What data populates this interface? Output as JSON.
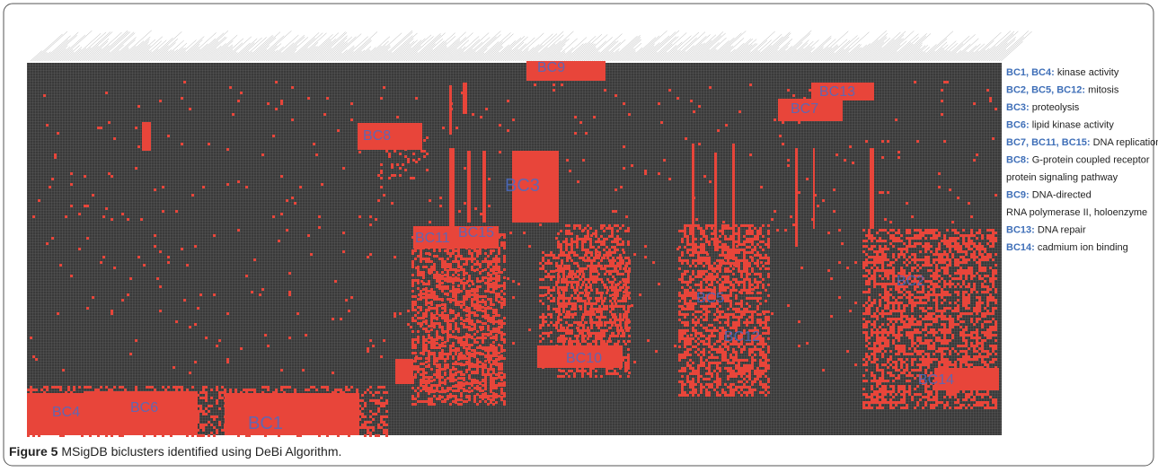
{
  "figure": {
    "bicluster_labels": [
      "BC9",
      "BC13",
      "BC7",
      "BC8",
      "BC3",
      "BC11",
      "BC15",
      "BC5",
      "BC2",
      "BC12",
      "BC10",
      "BC14",
      "BC4",
      "BC6",
      "BC1"
    ],
    "legend": [
      {
        "key": "BC1, BC4:",
        "text": "kinase activity"
      },
      {
        "key": "BC2, BC5, BC12:",
        "text": "mitosis"
      },
      {
        "key": "BC3:",
        "text": "proteolysis"
      },
      {
        "key": "BC6:",
        "text": "lipid kinase activity"
      },
      {
        "key": "BC7, BC11, BC15:",
        "text": "DNA replication"
      },
      {
        "key": "BC8:",
        "text": "G-protein coupled receptor",
        "text2": "protein signaling pathway"
      },
      {
        "key": "BC9:",
        "text": "DNA-directed",
        "text2": "RNA polymerase II, holoenzyme"
      },
      {
        "key": "BC13:",
        "text": "DNA repair"
      },
      {
        "key": "BC14:",
        "text": "cadmium ion binding"
      }
    ],
    "caption": {
      "label": "Figure 5",
      "text": "MSigDB biclusters identified using DeBi Algorithm."
    }
  }
}
